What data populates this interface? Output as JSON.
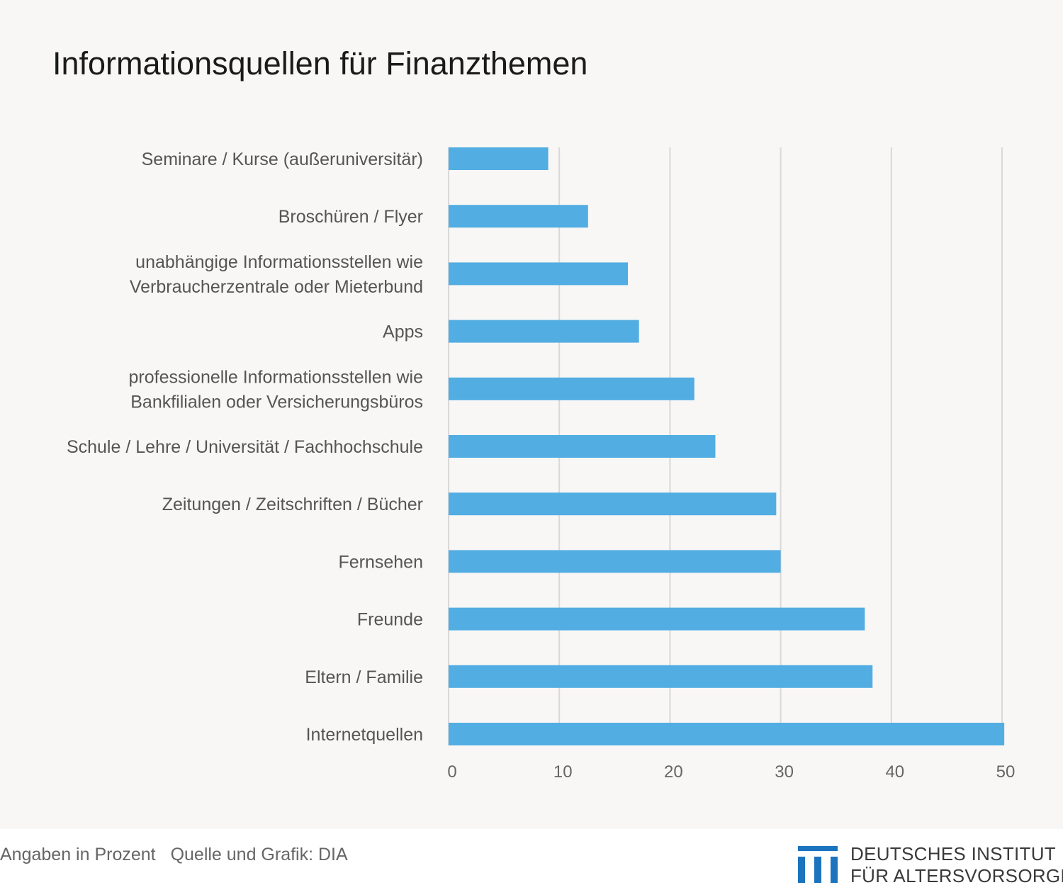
{
  "chart_data": {
    "type": "bar",
    "orientation": "horizontal",
    "title": "Informationsquellen für Finanzthemen",
    "categories": [
      [
        "Seminare / Kurse (außeruniversitär)"
      ],
      [
        "Broschüren / Flyer"
      ],
      [
        "unabhängige Informationsstellen wie",
        "Verbraucherzentrale oder Mieterbund"
      ],
      [
        "Apps"
      ],
      [
        "professionelle Informationsstellen wie",
        "Bankfilialen oder Versicherungsbüros"
      ],
      [
        "Schule / Lehre / Universität / Fachhochschule"
      ],
      [
        "Zeitungen / Zeitschriften / Bücher"
      ],
      [
        "Fernsehen"
      ],
      [
        "Freunde"
      ],
      [
        "Eltern / Familie"
      ],
      [
        "Internetquellen"
      ]
    ],
    "values": [
      9,
      12.6,
      16.2,
      17.2,
      22.2,
      24.1,
      29.6,
      30,
      37.6,
      38.3,
      50.2
    ],
    "xlim": [
      0,
      50
    ],
    "xticks": [
      0,
      10,
      20,
      30,
      40,
      50
    ],
    "grid": true,
    "bar_color": "#52ade2",
    "grid_color": "#d9d9d9"
  },
  "footer": {
    "unit_note": "Angaben in Prozent",
    "source_note": "Quelle und Grafik: DIA"
  },
  "logo": {
    "line1": "DEUTSCHES INSTITUT",
    "line2": "FÜR ALTERSVORSORGE",
    "color": "#1c74bf"
  }
}
